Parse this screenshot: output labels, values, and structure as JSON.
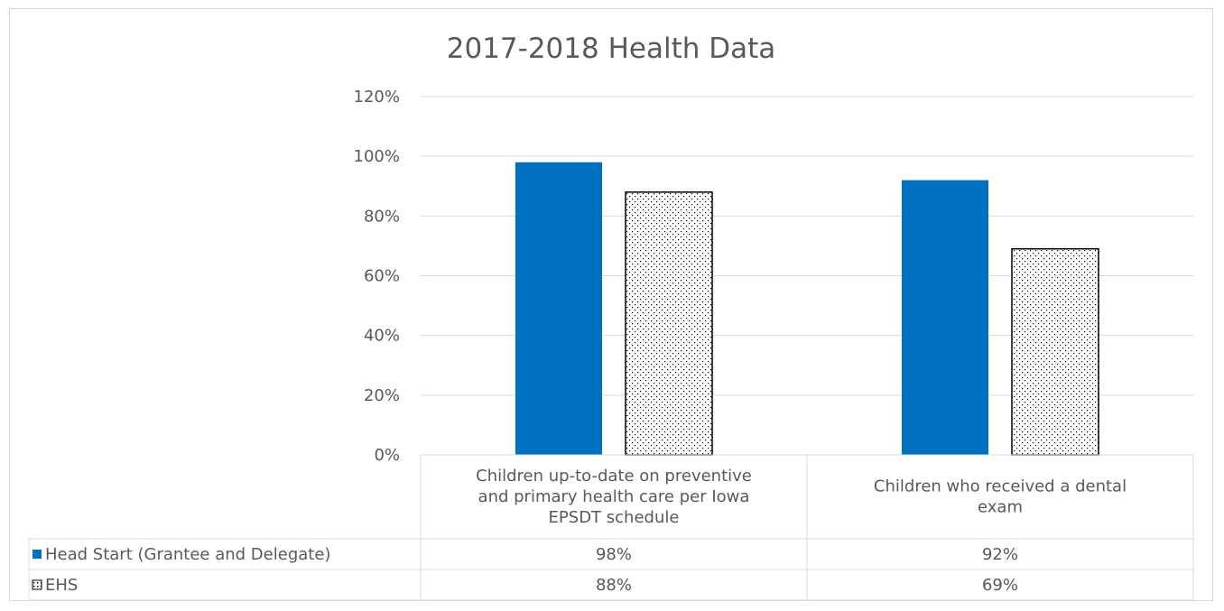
{
  "chart_data": {
    "type": "bar",
    "title": "2017-2018 Health Data",
    "xlabel": "",
    "ylabel": "",
    "ylim": [
      0,
      120
    ],
    "y_ticks": [
      0,
      20,
      40,
      60,
      80,
      100,
      120
    ],
    "y_tick_labels": [
      "0%",
      "20%",
      "40%",
      "60%",
      "80%",
      "100%",
      "120%"
    ],
    "grid": true,
    "legend": "data-table",
    "categories": [
      "Children up-to-date on preventive and primary health care per Iowa EPSDT schedule",
      "Children who received a dental exam"
    ],
    "category_label_lines": [
      [
        "Children up-to-date on preventive",
        "and primary health care per Iowa",
        "EPSDT schedule"
      ],
      [
        "Children who received a dental",
        "exam"
      ]
    ],
    "series": [
      {
        "name": "Head Start (Grantee and Delegate)",
        "values": [
          98,
          92
        ],
        "value_labels": [
          "98%",
          "92%"
        ],
        "color": "#0070c0",
        "pattern": "solid"
      },
      {
        "name": "EHS",
        "values": [
          88,
          69
        ],
        "value_labels": [
          "88%",
          "69%"
        ],
        "color": "#000000",
        "pattern": "dotted"
      }
    ]
  }
}
